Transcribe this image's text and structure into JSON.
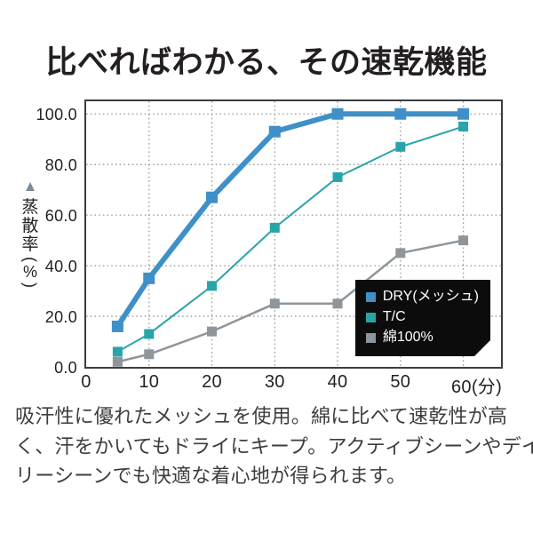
{
  "page": {
    "title": "比べればわかる、その速乾機能",
    "description_lines": [
      "吸汗性に優れたメッシュを使用。綿に比べて速乾性が高",
      "く、汗をかいてもドライにキープ。アクティブシーンやデイ",
      "リーシーンでも快適な着心地が得られます。"
    ]
  },
  "chart_data": {
    "type": "line",
    "title": "",
    "xlabel": "",
    "ylabel": "蒸散率(%)",
    "ylabel_marker": "▲",
    "ylabel_chars": [
      "蒸",
      "散",
      "率"
    ],
    "ylabel_unit": "(%)",
    "x_unit": "分",
    "x": [
      5,
      10,
      20,
      30,
      40,
      50,
      60
    ],
    "series": [
      {
        "id": "dry-mesh",
        "name": "DRY(メッシュ)",
        "color": "#3f90c8",
        "line_width": 6,
        "marker_size": 13,
        "values": [
          16,
          35,
          67,
          93,
          100,
          100,
          100
        ]
      },
      {
        "id": "tc",
        "name": "T/C",
        "color": "#29a4a9",
        "line_width": 2,
        "marker_size": 11,
        "values": [
          6,
          13,
          32,
          55,
          75,
          87,
          95
        ]
      },
      {
        "id": "cotton-100",
        "name": "綿100%",
        "color": "#8e969b",
        "line_width": 2.5,
        "marker_size": 11,
        "values": [
          2,
          5,
          14,
          25,
          25,
          45,
          50
        ]
      }
    ],
    "xticks": [
      {
        "v": 0,
        "label": "0"
      },
      {
        "v": 10,
        "label": "10"
      },
      {
        "v": 20,
        "label": "20"
      },
      {
        "v": 30,
        "label": "30"
      },
      {
        "v": 40,
        "label": "40"
      },
      {
        "v": 50,
        "label": "50"
      },
      {
        "v": 60,
        "label": "60(分)",
        "dx": 15
      }
    ],
    "yticks": [
      {
        "v": 0,
        "label": "0.0"
      },
      {
        "v": 20,
        "label": "20.0"
      },
      {
        "v": 40,
        "label": "40.0"
      },
      {
        "v": 60,
        "label": "60.0"
      },
      {
        "v": 80,
        "label": "80.0"
      },
      {
        "v": 100,
        "label": "100.0"
      }
    ],
    "xlim": [
      0,
      66
    ],
    "ylim": [
      0,
      105
    ],
    "grid": "dotted",
    "grid_color": "#9a9a9a",
    "frame_color": "#3d3d3d",
    "legend_position": "inside-bottom-right",
    "legend_bg": "#0c0c0c",
    "legend_text_color": "#ffffff"
  }
}
